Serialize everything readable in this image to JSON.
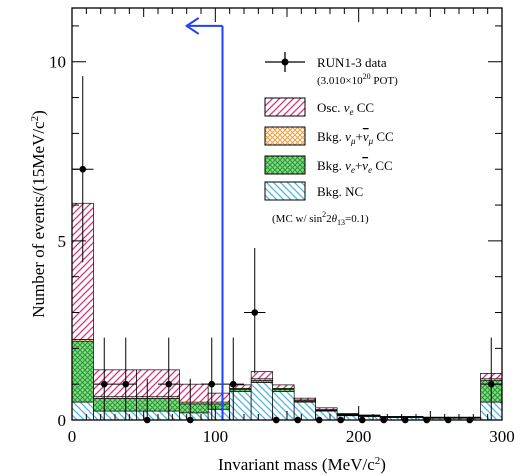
{
  "chart_data": {
    "type": "bar",
    "stacked": true,
    "xlabel": "Invariant mass (MeV/c²)",
    "ylabel": "Number of events/(15MeV/c²)",
    "xlim": [
      0,
      300
    ],
    "ylim": [
      0,
      11.5
    ],
    "x_ticks": [
      0,
      100,
      200,
      300
    ],
    "x_tick_labels": [
      "0",
      "100",
      "200",
      "300"
    ],
    "y_ticks": [
      0,
      5,
      10
    ],
    "y_tick_labels": [
      "0",
      "5",
      "10"
    ],
    "legend_position": "top-right",
    "bin_edges": [
      0,
      15,
      45,
      75,
      95,
      110,
      125,
      140,
      155,
      170,
      185,
      200,
      215,
      230,
      245,
      260,
      285,
      300
    ],
    "series": [
      {
        "name": "Bkg. NC",
        "color": "#4fb6dd",
        "pattern": "hatch-back",
        "values": [
          0.5,
          0.25,
          0.25,
          0.2,
          0.3,
          0.8,
          1.05,
          0.8,
          0.5,
          0.25,
          0.12,
          0.1,
          0.07,
          0.07,
          0.05,
          0.05,
          0.5
        ]
      },
      {
        "name": "Bkg. ν_e+ν̄_e CC",
        "color": "#39b54a",
        "pattern": "cross",
        "values": [
          1.7,
          0.35,
          0.35,
          0.25,
          0.15,
          0.05,
          0.05,
          0.05,
          0.03,
          0.02,
          0.02,
          0.01,
          0.01,
          0.01,
          0.01,
          0.01,
          0.6
        ]
      },
      {
        "name": "Bkg. ν_μ+ν̄_μ CC",
        "color": "#f29b3c",
        "pattern": "cross",
        "values": [
          0.05,
          0.05,
          0.05,
          0.05,
          0.05,
          0.03,
          0.05,
          0.03,
          0.03,
          0.02,
          0.02,
          0.01,
          0.01,
          0.01,
          0.01,
          0.01,
          0.05
        ]
      },
      {
        "name": "Osc. ν_e CC",
        "color": "#d6337a",
        "pattern": "hatch-fwd",
        "values": [
          3.8,
          0.75,
          0.75,
          0.5,
          0.25,
          0.1,
          0.2,
          0.1,
          0.05,
          0.05,
          0.02,
          0.02,
          0.01,
          0.01,
          0.01,
          0.01,
          0.15
        ]
      }
    ],
    "data_points": {
      "name": "RUN1-3 data",
      "x": [
        7.5,
        22.5,
        37.5,
        52.5,
        67.5,
        82.5,
        97.5,
        112.5,
        127.5,
        142.5,
        157.5,
        172.5,
        187.5,
        202.5,
        217.5,
        232.5,
        247.5,
        262.5,
        277.5,
        292.5
      ],
      "y": [
        7,
        1,
        1,
        0,
        1,
        0,
        1,
        1,
        3,
        0,
        0,
        0,
        0,
        0,
        0,
        0,
        0,
        0,
        0,
        1
      ],
      "yerr_up": [
        2.6,
        1.3,
        1.3,
        1.15,
        1.3,
        1.15,
        1.3,
        1.3,
        1.8,
        0,
        0,
        0,
        0,
        0,
        0,
        0,
        0,
        0,
        0,
        1.3
      ],
      "yerr_down": [
        2.6,
        1,
        1,
        0,
        1,
        0,
        1,
        1,
        1.7,
        0,
        0,
        0,
        0,
        0,
        0,
        0,
        0,
        0,
        0,
        1
      ]
    },
    "cut": {
      "x": 105,
      "y_top": 11,
      "arrow_x_end": 80,
      "color": "#1f3fff"
    },
    "legend": {
      "data_label": "RUN1-3 data",
      "pot_label": "(3.010×10²⁰ POT)",
      "entries": [
        "Osc. νe CC",
        "Bkg. νμ+ν̄μ CC",
        "Bkg. νe+ν̄e CC",
        "Bkg. NC"
      ],
      "note": "(MC w/ sin²2θ₁₃=0.1)"
    }
  }
}
